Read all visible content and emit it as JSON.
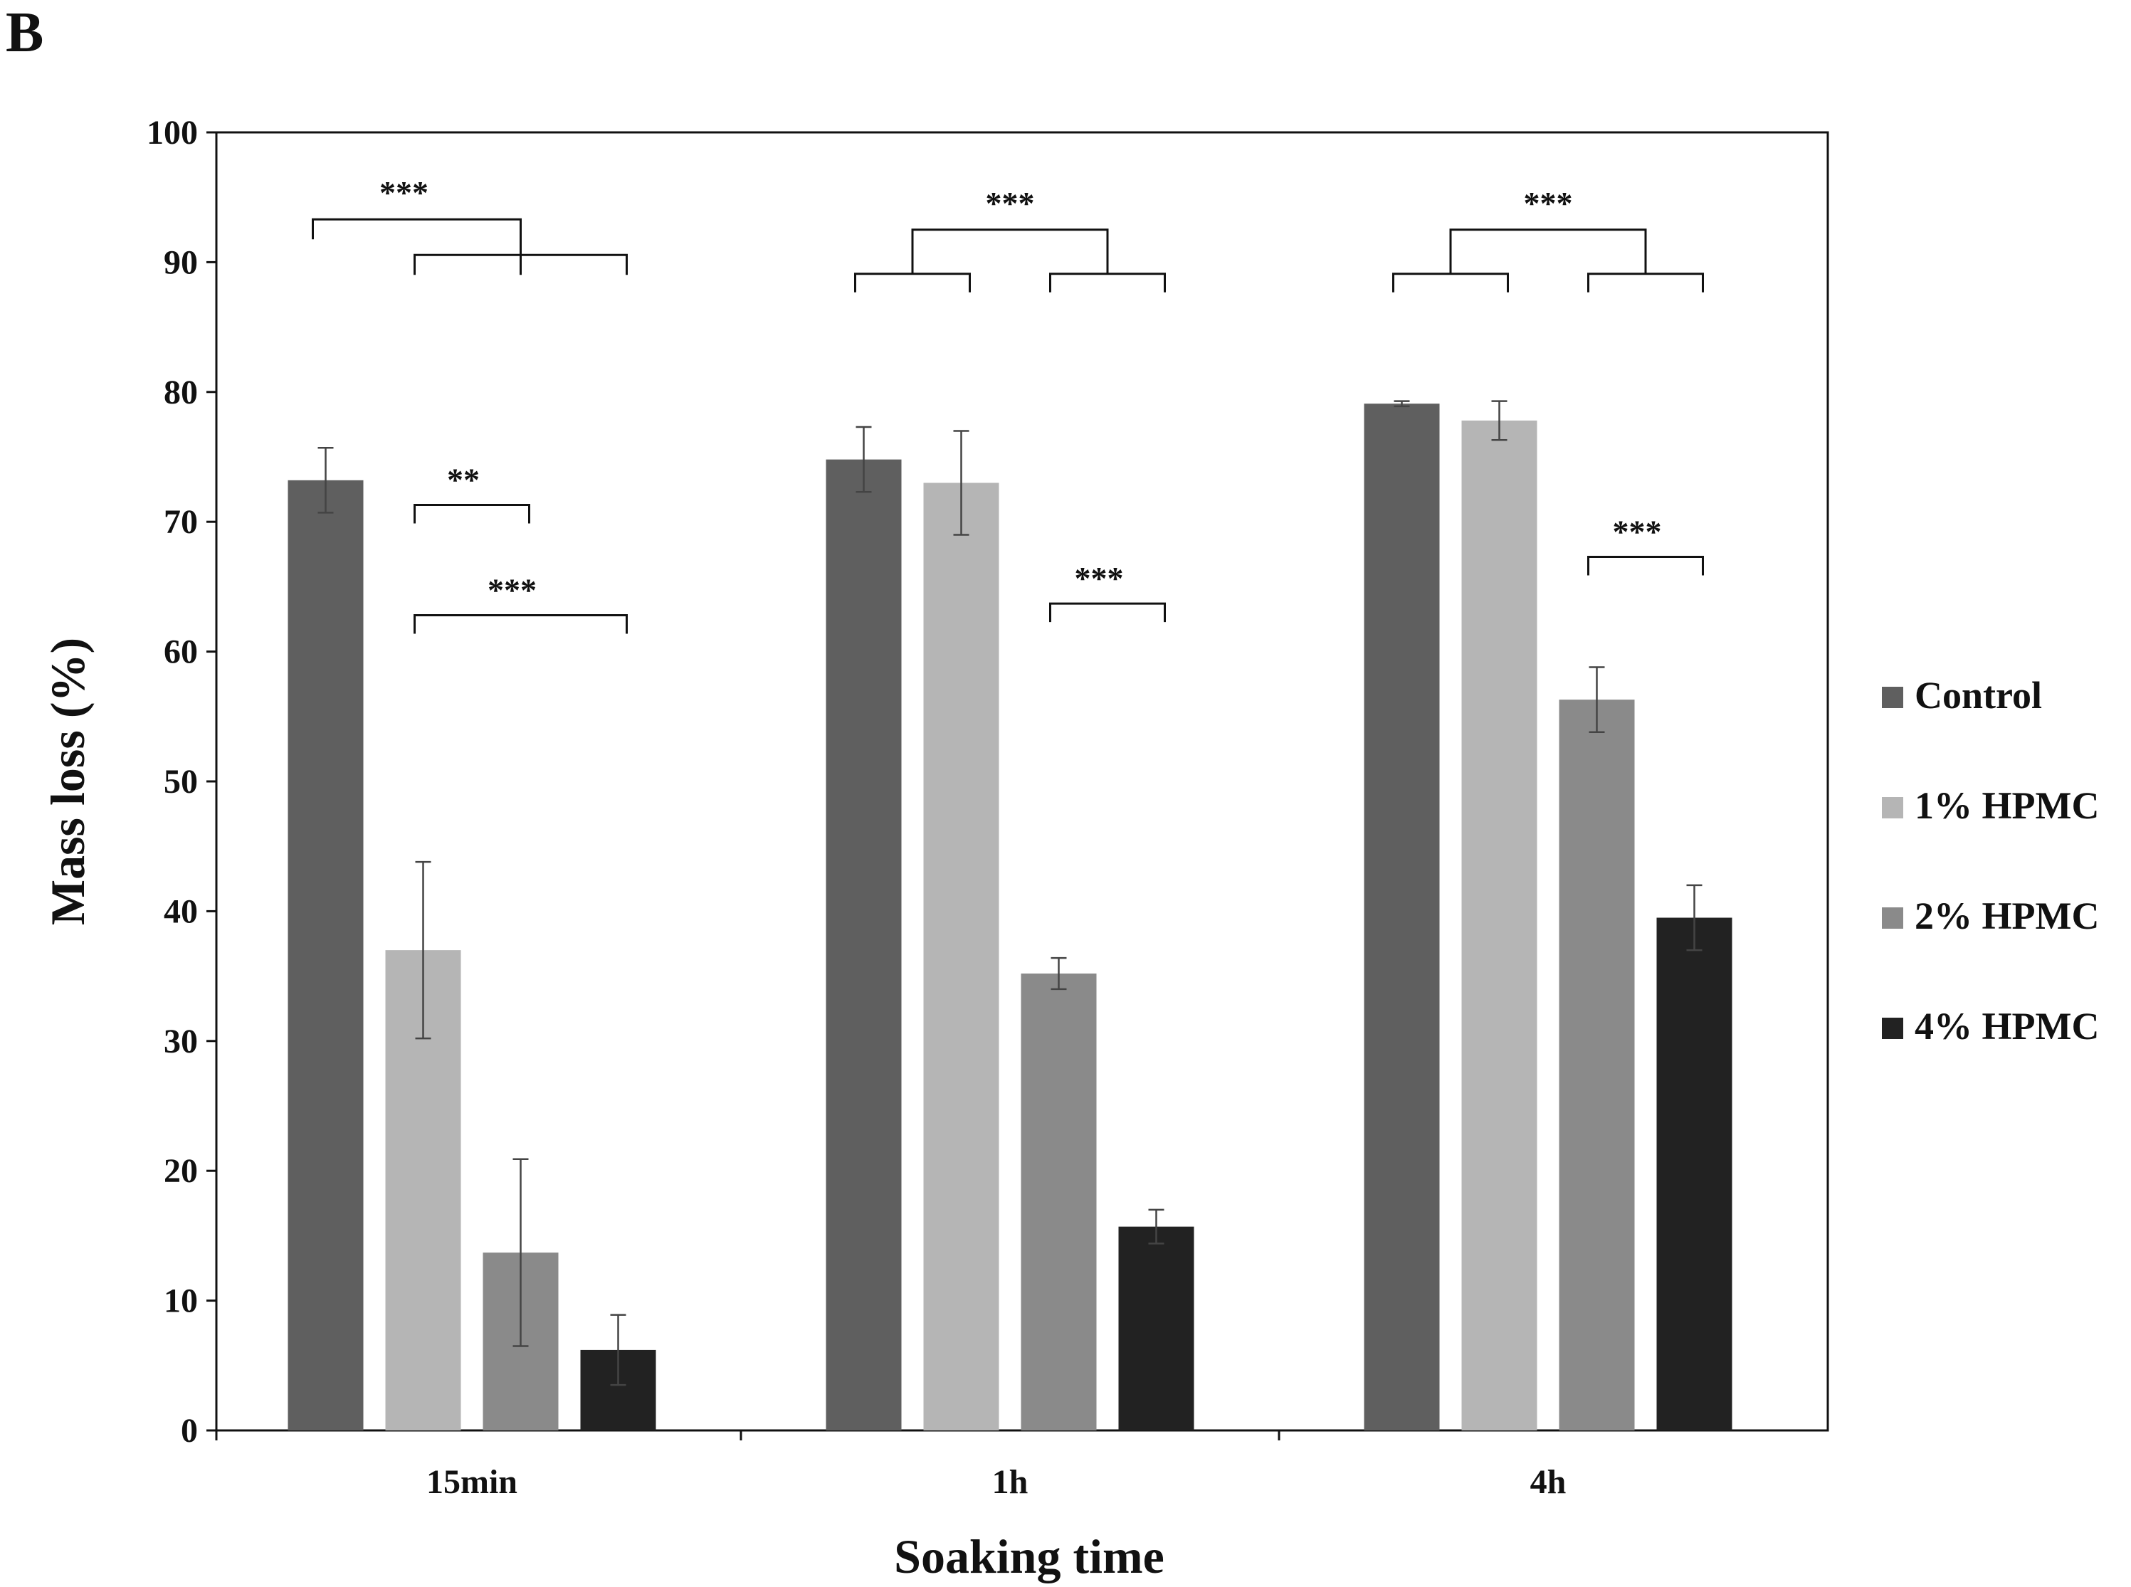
{
  "panel_label": "B",
  "chart_data": {
    "type": "bar",
    "title": "",
    "xlabel": "Soaking time",
    "ylabel": "Mass loss (%)",
    "ylim": [
      0,
      100
    ],
    "yticks": [
      0,
      10,
      20,
      30,
      40,
      50,
      60,
      70,
      80,
      90,
      100
    ],
    "grid": false,
    "legend_position": "right",
    "categories": [
      "15min",
      "1h",
      "4h"
    ],
    "series": [
      {
        "name": "Control",
        "color": "#5f5f5f",
        "values": [
          73.2,
          74.8,
          79.1
        ],
        "errors": [
          2.5,
          2.5,
          0.2
        ]
      },
      {
        "name": "1% HPMC",
        "color": "#b5b5b5",
        "values": [
          37.0,
          73.0,
          77.8
        ],
        "errors": [
          6.8,
          4.0,
          1.5
        ]
      },
      {
        "name": "2% HPMC",
        "color": "#8a8a8a",
        "values": [
          13.7,
          35.2,
          56.3
        ],
        "errors": [
          7.2,
          1.2,
          2.5
        ]
      },
      {
        "name": "4% HPMC",
        "color": "#222222",
        "values": [
          6.2,
          15.7,
          39.5
        ],
        "errors": [
          2.7,
          1.3,
          2.5
        ]
      }
    ],
    "annotations": [
      {
        "text": "***",
        "group": "15min",
        "type": "nested",
        "from": "Control",
        "to": [
          "1% HPMC",
          "2% HPMC",
          "4% HPMC"
        ],
        "level": 93.3
      },
      {
        "text": "**",
        "group": "15min",
        "type": "pair",
        "from": "1% HPMC",
        "to": "2% HPMC",
        "level": 71.3
      },
      {
        "text": "***",
        "group": "15min",
        "type": "pair",
        "from": "1% HPMC",
        "to": "4% HPMC",
        "level": 62.8
      },
      {
        "text": "***",
        "group": "1h",
        "type": "pairs-linked",
        "pairs": [
          [
            "Control",
            "1% HPMC"
          ],
          [
            "2% HPMC",
            "4% HPMC"
          ]
        ],
        "level": 92.5
      },
      {
        "text": "***",
        "group": "1h",
        "type": "pair",
        "from": "2% HPMC",
        "to": "4% HPMC",
        "level": 63.7
      },
      {
        "text": "***",
        "group": "4h",
        "type": "pairs-linked",
        "pairs": [
          [
            "Control",
            "1% HPMC"
          ],
          [
            "2% HPMC",
            "4% HPMC"
          ]
        ],
        "level": 92.5
      },
      {
        "text": "***",
        "group": "4h",
        "type": "pair",
        "from": "2% HPMC",
        "to": "4% HPMC",
        "level": 67.3
      }
    ]
  }
}
